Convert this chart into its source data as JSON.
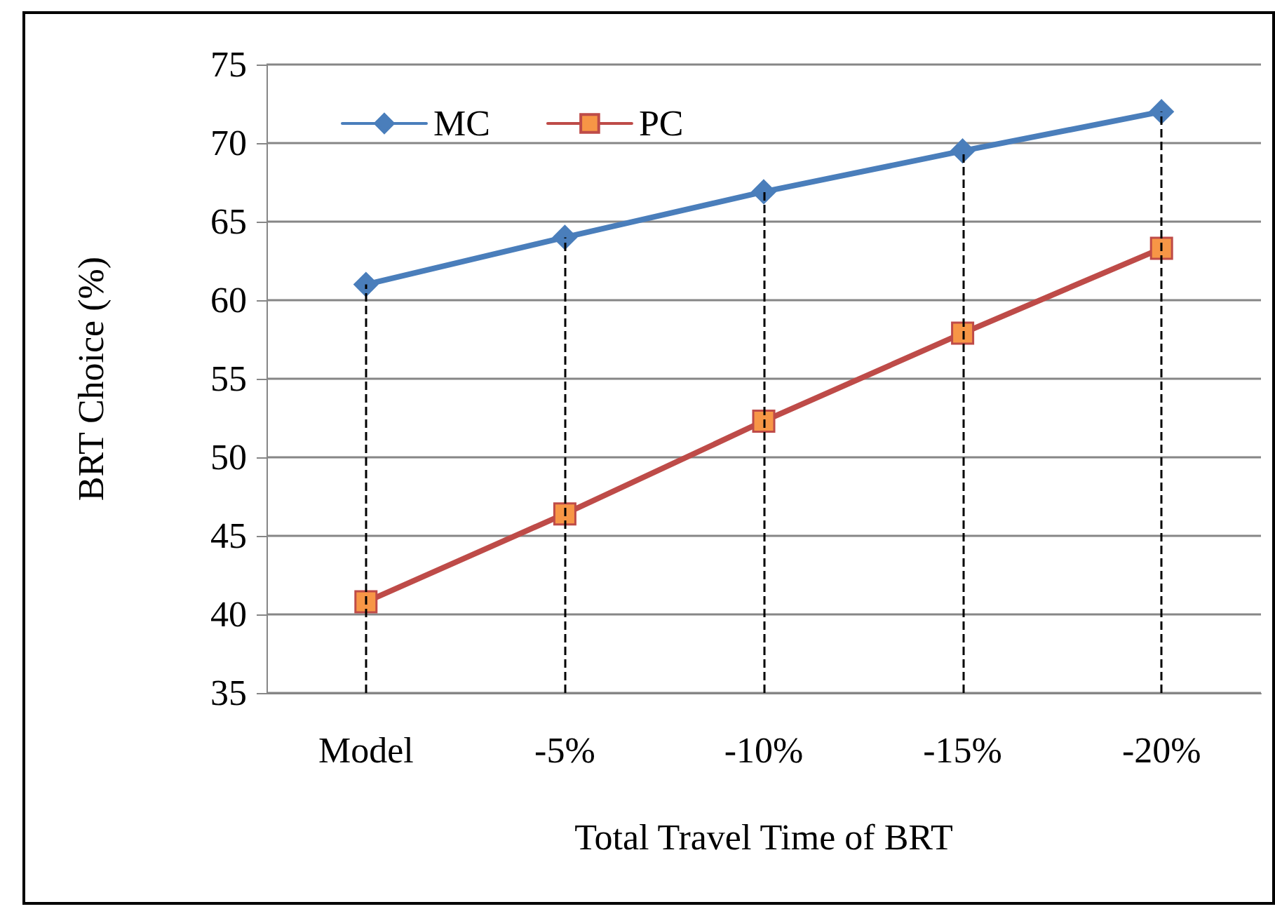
{
  "chart_data": {
    "type": "line",
    "xlabel": "Total Travel Time of BRT",
    "ylabel": "BRT Choice (%)",
    "categories": [
      "Model",
      "-5%",
      "-10%",
      "-15%",
      "-20%"
    ],
    "series": [
      {
        "name": "MC",
        "color": "#4a7ebb",
        "marker": "diamond",
        "values": [
          61,
          64,
          66.9,
          69.5,
          72
        ]
      },
      {
        "name": "PC",
        "color": "#be4b48",
        "marker": "square",
        "values": [
          40.8,
          46.4,
          52.3,
          57.9,
          63.3
        ]
      }
    ],
    "ylim": [
      35,
      75
    ],
    "yticks": [
      35,
      40,
      45,
      50,
      55,
      60,
      65,
      70,
      75
    ],
    "grid": "y",
    "legend": "top left",
    "ref_lines": [
      {
        "axis": "x",
        "value": "Model",
        "color": "#000000",
        "line_style": "dashed"
      },
      {
        "axis": "x",
        "value": "-5%",
        "color": "#000000",
        "line_style": "dashed"
      },
      {
        "axis": "x",
        "value": "-10%",
        "color": "#000000",
        "line_style": "dashed"
      },
      {
        "axis": "x",
        "value": "-15%",
        "color": "#000000",
        "line_style": "dashed"
      },
      {
        "axis": "x",
        "value": "-20%",
        "color": "#000000",
        "line_style": "dashed"
      }
    ]
  }
}
